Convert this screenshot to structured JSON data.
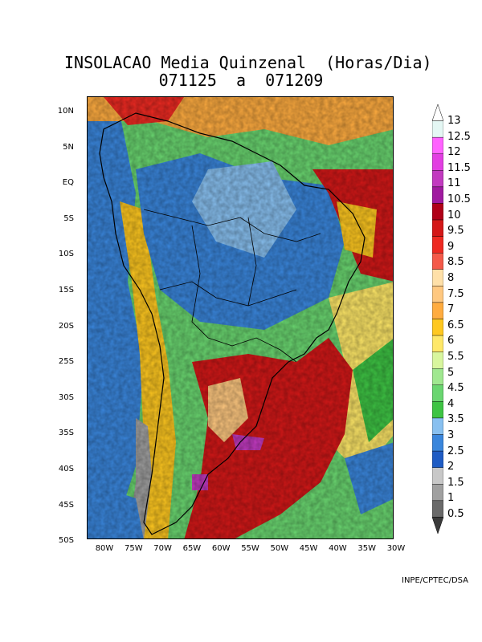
{
  "title": {
    "line1": "INSOLACAO Media Quinzenal  (Horas/Dia)",
    "line2": "071125  a  071209"
  },
  "map": {
    "lat_labels": [
      "10N",
      "5N",
      "EQ",
      "5S",
      "10S",
      "15S",
      "20S",
      "25S",
      "30S",
      "35S",
      "40S",
      "45S",
      "50S"
    ],
    "lon_labels": [
      "80W",
      "75W",
      "70W",
      "65W",
      "60W",
      "55W",
      "50W",
      "45W",
      "40W",
      "35W",
      "30W"
    ]
  },
  "colorbar": {
    "labels": [
      "13",
      "12.5",
      "12",
      "11.5",
      "11",
      "10.5",
      "10",
      "9.5",
      "9",
      "8.5",
      "8",
      "7.5",
      "7",
      "6.5",
      "6",
      "5.5",
      "5",
      "4.5",
      "4",
      "3.5",
      "3",
      "2.5",
      "2",
      "1.5",
      "1",
      "0.5"
    ],
    "colors": [
      "#ffffff",
      "#e4f7f4",
      "#ff62ff",
      "#e23ee2",
      "#c23ac0",
      "#a01aa0",
      "#b00018",
      "#d41818",
      "#ee2a22",
      "#f45a4a",
      "#ffe0a8",
      "#ffc880",
      "#ffac40",
      "#ffc820",
      "#ffe868",
      "#d8f69e",
      "#a0e890",
      "#6ad670",
      "#3ec444",
      "#88c0f0",
      "#3a86dc",
      "#1f5cc4",
      "#c8c8c8",
      "#a0a0a0",
      "#6a6a6a",
      "#3a3a3a"
    ]
  },
  "credit": "INPE/CPTEC/DSA"
}
